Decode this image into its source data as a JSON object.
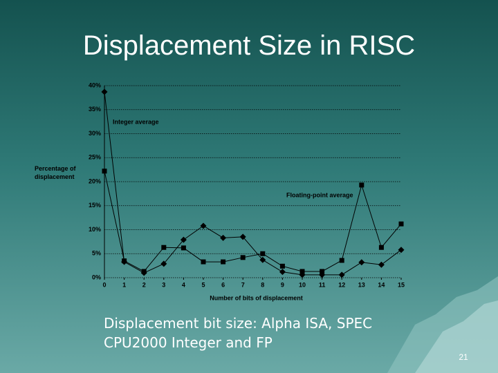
{
  "slide": {
    "title": "Displacement Size in RISC",
    "caption": "Displacement bit size: Alpha ISA, SPEC CPU2000 Integer and FP",
    "number": "21"
  },
  "chart_data": {
    "type": "line",
    "y_label": "Percentage of displacement",
    "x_label": "Number of bits of displacement",
    "x": [
      0,
      1,
      2,
      3,
      4,
      5,
      6,
      7,
      8,
      9,
      10,
      11,
      12,
      13,
      14,
      15
    ],
    "xlim": [
      0,
      15
    ],
    "xticks": [
      0,
      1,
      2,
      3,
      4,
      5,
      6,
      7,
      8,
      9,
      10,
      11,
      12,
      13,
      14,
      15
    ],
    "ylim": [
      0,
      40
    ],
    "yticks": [
      {
        "value": 0,
        "label": "0%"
      },
      {
        "value": 5,
        "label": "5%"
      },
      {
        "value": 10,
        "label": "10%"
      },
      {
        "value": 15,
        "label": "15%"
      },
      {
        "value": 20,
        "label": "20%"
      },
      {
        "value": 25,
        "label": "25%"
      },
      {
        "value": 30,
        "label": "30%"
      },
      {
        "value": 35,
        "label": "35%"
      },
      {
        "value": 40,
        "label": "40%"
      }
    ],
    "grid": true,
    "series": [
      {
        "name": "Integer average",
        "color": "#000000",
        "marker": "diamond",
        "values": [
          38.7,
          3.3,
          1,
          2.9,
          7.9,
          10.8,
          8.3,
          8.5,
          3.7,
          1.2,
          0.6,
          0.6,
          0.6,
          3.2,
          2.7,
          5.8
        ]
      },
      {
        "name": "Floating-point average",
        "color": "#000000",
        "marker": "square",
        "values": [
          22.2,
          3.5,
          1.3,
          6.3,
          6.2,
          3.3,
          3.3,
          4.2,
          5,
          2.4,
          1.3,
          1.3,
          3.6,
          19.3,
          6.3,
          11.2
        ]
      }
    ]
  }
}
